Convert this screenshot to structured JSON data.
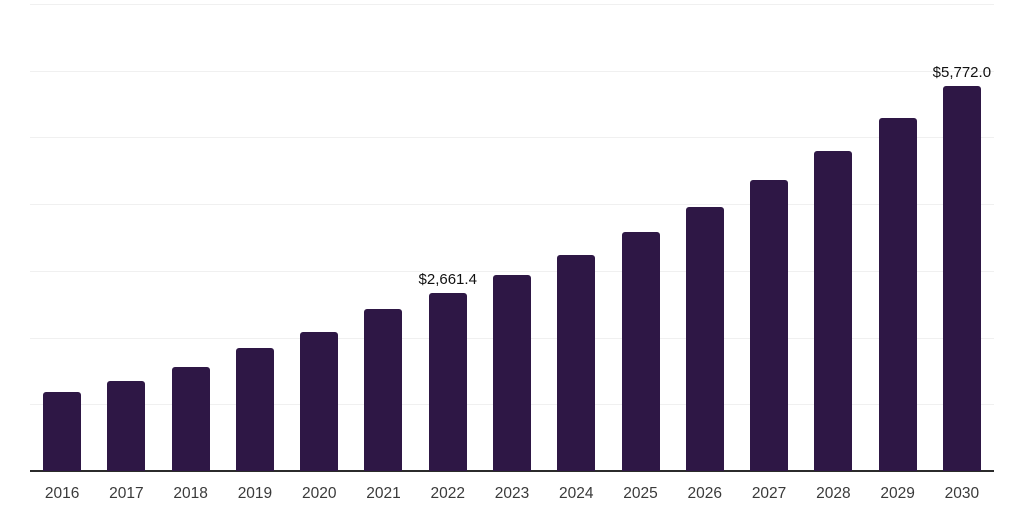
{
  "page": {
    "background": "#ffffff"
  },
  "chart_data": {
    "type": "bar",
    "title": "",
    "xlabel": "",
    "ylabel": "",
    "categories": [
      "2016",
      "2017",
      "2018",
      "2019",
      "2020",
      "2021",
      "2022",
      "2023",
      "2024",
      "2025",
      "2026",
      "2027",
      "2028",
      "2029",
      "2030"
    ],
    "values": [
      1180,
      1345,
      1560,
      1850,
      2085,
      2430,
      2661.4,
      2935,
      3245,
      3580,
      3950,
      4355,
      4790,
      5285,
      5772
    ],
    "value_labels": [
      "",
      "",
      "",
      "",
      "",
      "",
      "$2,661.4",
      "",
      "",
      "",
      "",
      "",
      "",
      "",
      "$5,772.0"
    ],
    "ylim": [
      0,
      7000
    ],
    "gridline_step": 1000,
    "gridline_count_above_axis": 7,
    "grid": "horizontal only, no y tick labels, no legend",
    "legend": "none",
    "colors": {
      "bar": "#2e1745",
      "grid": "#f0f0f0",
      "axis": "#2b2b2b",
      "tick_text": "#3a3a3a",
      "value_label_text": "#111111"
    }
  }
}
